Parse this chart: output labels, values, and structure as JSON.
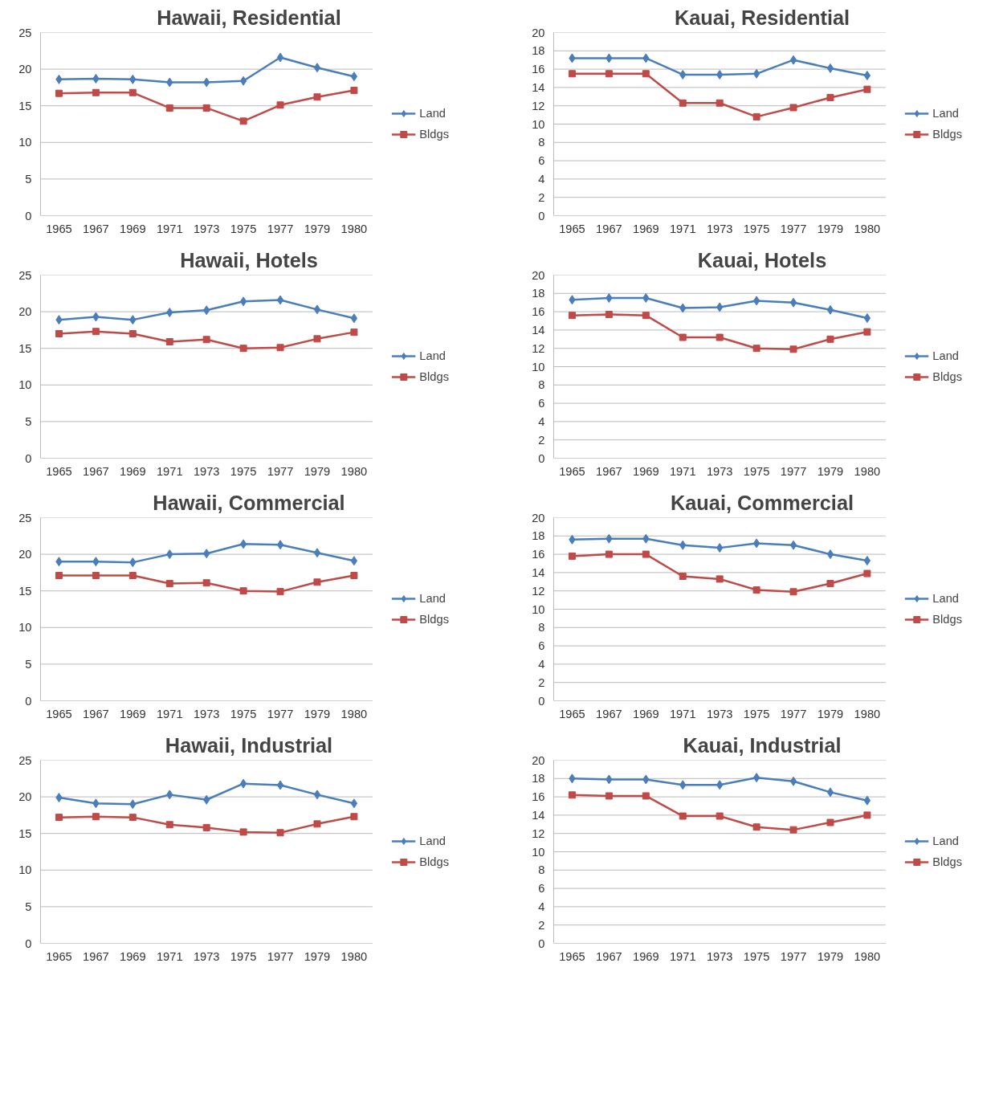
{
  "chart_data": [
    {
      "type": "line",
      "title": "Hawaii, Residential",
      "categories": [
        "1965",
        "1967",
        "1969",
        "1971",
        "1973",
        "1975",
        "1977",
        "1979",
        "1980"
      ],
      "ylim": [
        0,
        25
      ],
      "yticks": [
        0,
        5,
        10,
        15,
        20,
        25
      ],
      "grid": "y",
      "legend": "right",
      "series": [
        {
          "name": "Land",
          "color": "#4a7ebb",
          "marker": "diamond",
          "values": [
            18.6,
            18.7,
            18.6,
            18.2,
            18.2,
            18.4,
            21.6,
            20.2,
            19.0
          ]
        },
        {
          "name": "Bldgs",
          "color": "#be4b48",
          "marker": "square",
          "values": [
            16.7,
            16.8,
            16.8,
            14.7,
            14.7,
            12.9,
            15.1,
            16.2,
            17.1
          ]
        }
      ]
    },
    {
      "type": "line",
      "title": "Kauai, Residential",
      "categories": [
        "1965",
        "1967",
        "1969",
        "1971",
        "1973",
        "1975",
        "1977",
        "1979",
        "1980"
      ],
      "ylim": [
        0,
        20
      ],
      "yticks": [
        0,
        2,
        4,
        6,
        8,
        10,
        12,
        14,
        16,
        18,
        20
      ],
      "grid": "y",
      "legend": "right",
      "series": [
        {
          "name": "Land",
          "color": "#4a7ebb",
          "marker": "diamond",
          "values": [
            17.2,
            17.2,
            17.2,
            15.4,
            15.4,
            15.5,
            17.0,
            16.1,
            15.3
          ]
        },
        {
          "name": "Bldgs",
          "color": "#be4b48",
          "marker": "square",
          "values": [
            15.5,
            15.5,
            15.5,
            12.3,
            12.3,
            10.8,
            11.8,
            12.9,
            13.8
          ]
        }
      ]
    },
    {
      "type": "line",
      "title": "Hawaii, Hotels",
      "categories": [
        "1965",
        "1967",
        "1969",
        "1971",
        "1973",
        "1975",
        "1977",
        "1979",
        "1980"
      ],
      "ylim": [
        0,
        25
      ],
      "yticks": [
        0,
        5,
        10,
        15,
        20,
        25
      ],
      "grid": "y",
      "legend": "right",
      "series": [
        {
          "name": "Land",
          "color": "#4a7ebb",
          "marker": "diamond",
          "values": [
            18.9,
            19.3,
            18.9,
            19.9,
            20.2,
            21.4,
            21.6,
            20.3,
            19.1
          ]
        },
        {
          "name": "Bldgs",
          "color": "#be4b48",
          "marker": "square",
          "values": [
            17.0,
            17.3,
            17.0,
            15.9,
            16.2,
            15.0,
            15.1,
            16.3,
            17.2
          ]
        }
      ]
    },
    {
      "type": "line",
      "title": "Kauai, Hotels",
      "categories": [
        "1965",
        "1967",
        "1969",
        "1971",
        "1973",
        "1975",
        "1977",
        "1979",
        "1980"
      ],
      "ylim": [
        0,
        20
      ],
      "yticks": [
        0,
        2,
        4,
        6,
        8,
        10,
        12,
        14,
        16,
        18,
        20
      ],
      "grid": "y",
      "legend": "right",
      "series": [
        {
          "name": "Land",
          "color": "#4a7ebb",
          "marker": "diamond",
          "values": [
            17.3,
            17.5,
            17.5,
            16.4,
            16.5,
            17.2,
            17.0,
            16.2,
            15.3
          ]
        },
        {
          "name": "Bldgs",
          "color": "#be4b48",
          "marker": "square",
          "values": [
            15.6,
            15.7,
            15.6,
            13.2,
            13.2,
            12.0,
            11.9,
            13.0,
            13.8
          ]
        }
      ]
    },
    {
      "type": "line",
      "title": "Hawaii, Commercial",
      "categories": [
        "1965",
        "1967",
        "1969",
        "1971",
        "1973",
        "1975",
        "1977",
        "1979",
        "1980"
      ],
      "ylim": [
        0,
        25
      ],
      "yticks": [
        0,
        5,
        10,
        15,
        20,
        25
      ],
      "grid": "y",
      "legend": "right",
      "series": [
        {
          "name": "Land",
          "color": "#4a7ebb",
          "marker": "diamond",
          "values": [
            19.0,
            19.0,
            18.9,
            20.0,
            20.1,
            21.4,
            21.3,
            20.2,
            19.1
          ]
        },
        {
          "name": "Bldgs",
          "color": "#be4b48",
          "marker": "square",
          "values": [
            17.1,
            17.1,
            17.1,
            16.0,
            16.1,
            15.0,
            14.9,
            16.2,
            17.1
          ]
        }
      ]
    },
    {
      "type": "line",
      "title": "Kauai, Commercial",
      "categories": [
        "1965",
        "1967",
        "1969",
        "1971",
        "1973",
        "1975",
        "1977",
        "1979",
        "1980"
      ],
      "ylim": [
        0,
        20
      ],
      "yticks": [
        0,
        2,
        4,
        6,
        8,
        10,
        12,
        14,
        16,
        18,
        20
      ],
      "grid": "y",
      "legend": "right",
      "series": [
        {
          "name": "Land",
          "color": "#4a7ebb",
          "marker": "diamond",
          "values": [
            17.6,
            17.7,
            17.7,
            17.0,
            16.7,
            17.2,
            17.0,
            16.0,
            15.3
          ]
        },
        {
          "name": "Bldgs",
          "color": "#be4b48",
          "marker": "square",
          "values": [
            15.8,
            16.0,
            16.0,
            13.6,
            13.3,
            12.1,
            11.9,
            12.8,
            13.9
          ]
        }
      ]
    },
    {
      "type": "line",
      "title": "Hawaii, Industrial",
      "categories": [
        "1965",
        "1967",
        "1969",
        "1971",
        "1973",
        "1975",
        "1977",
        "1979",
        "1980"
      ],
      "ylim": [
        0,
        25
      ],
      "yticks": [
        0,
        5,
        10,
        15,
        20,
        25
      ],
      "grid": "y",
      "legend": "right",
      "series": [
        {
          "name": "Land",
          "color": "#4a7ebb",
          "marker": "diamond",
          "values": [
            19.9,
            19.1,
            19.0,
            20.3,
            19.6,
            21.8,
            21.6,
            20.3,
            19.1
          ]
        },
        {
          "name": "Bldgs",
          "color": "#be4b48",
          "marker": "square",
          "values": [
            17.2,
            17.3,
            17.2,
            16.2,
            15.8,
            15.2,
            15.1,
            16.3,
            17.3
          ]
        }
      ]
    },
    {
      "type": "line",
      "title": "Kauai, Industrial",
      "categories": [
        "1965",
        "1967",
        "1969",
        "1971",
        "1973",
        "1975",
        "1977",
        "1979",
        "1980"
      ],
      "ylim": [
        0,
        20
      ],
      "yticks": [
        0,
        2,
        4,
        6,
        8,
        10,
        12,
        14,
        16,
        18,
        20
      ],
      "grid": "y",
      "legend": "right",
      "series": [
        {
          "name": "Land",
          "color": "#4a7ebb",
          "marker": "diamond",
          "values": [
            18.0,
            17.9,
            17.9,
            17.3,
            17.3,
            18.1,
            17.7,
            16.5,
            15.6
          ]
        },
        {
          "name": "Bldgs",
          "color": "#be4b48",
          "marker": "square",
          "values": [
            16.2,
            16.1,
            16.1,
            13.9,
            13.9,
            12.7,
            12.4,
            13.2,
            14.0
          ]
        }
      ]
    }
  ]
}
